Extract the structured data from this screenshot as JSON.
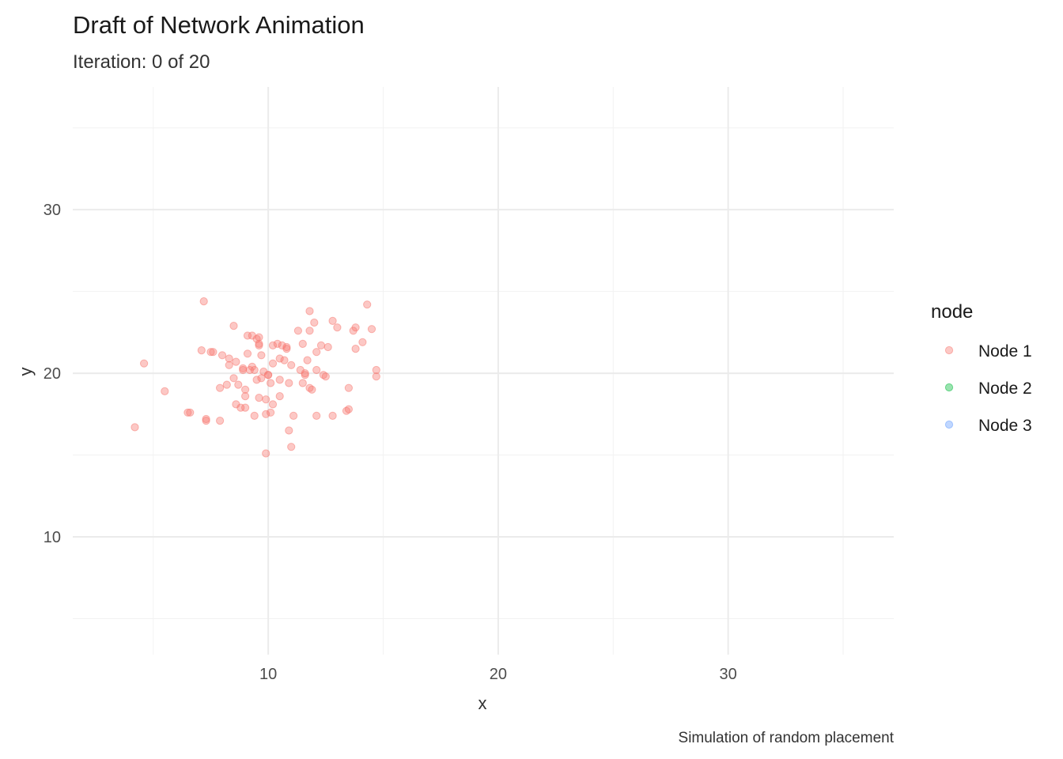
{
  "chart_data": {
    "type": "scatter",
    "title": "Draft of Network Animation",
    "subtitle": "Iteration: 0 of 20",
    "xlabel": "x",
    "ylabel": "y",
    "caption": "Simulation of random placement",
    "xlim": [
      1.5,
      37.2
    ],
    "ylim": [
      2.8,
      37.5
    ],
    "x_ticks": [
      10,
      20,
      30
    ],
    "y_ticks": [
      10,
      20,
      30
    ],
    "x_minor_ticks": [
      5,
      15,
      25,
      35
    ],
    "y_minor_ticks": [
      5,
      15,
      25,
      35
    ],
    "grid": true,
    "legend": {
      "title": "node",
      "position": "right",
      "entries": [
        {
          "label": "Node 1",
          "color": "#F8766D"
        },
        {
          "label": "Node 2",
          "color": "#00BA38"
        },
        {
          "label": "Node 3",
          "color": "#619CFF"
        }
      ]
    },
    "point_alpha": 0.4,
    "series": [
      {
        "name": "Node 1",
        "color": "#F8766D",
        "points": [
          [
            4.2,
            16.7
          ],
          [
            4.6,
            20.6
          ],
          [
            5.5,
            18.9
          ],
          [
            6.5,
            17.6
          ],
          [
            6.6,
            17.6
          ],
          [
            7.2,
            24.4
          ],
          [
            7.1,
            21.4
          ],
          [
            7.3,
            17.1
          ],
          [
            7.3,
            17.2
          ],
          [
            7.5,
            21.3
          ],
          [
            7.6,
            21.3
          ],
          [
            7.9,
            19.1
          ],
          [
            7.9,
            17.1
          ],
          [
            8.0,
            21.1
          ],
          [
            8.2,
            19.3
          ],
          [
            8.3,
            20.9
          ],
          [
            8.3,
            20.5
          ],
          [
            8.5,
            19.7
          ],
          [
            8.5,
            22.9
          ],
          [
            8.6,
            20.7
          ],
          [
            8.6,
            18.1
          ],
          [
            8.7,
            19.3
          ],
          [
            8.8,
            17.9
          ],
          [
            8.9,
            20.2
          ],
          [
            8.9,
            20.3
          ],
          [
            9.0,
            17.9
          ],
          [
            9.0,
            19.0
          ],
          [
            9.0,
            18.6
          ],
          [
            9.1,
            22.3
          ],
          [
            9.1,
            21.2
          ],
          [
            9.2,
            20.2
          ],
          [
            9.3,
            22.3
          ],
          [
            9.3,
            20.4
          ],
          [
            9.4,
            20.2
          ],
          [
            9.4,
            17.4
          ],
          [
            9.5,
            19.6
          ],
          [
            9.5,
            22.1
          ],
          [
            9.6,
            22.2
          ],
          [
            9.6,
            21.7
          ],
          [
            9.6,
            21.8
          ],
          [
            9.6,
            18.5
          ],
          [
            9.7,
            21.1
          ],
          [
            9.7,
            19.7
          ],
          [
            9.8,
            20.1
          ],
          [
            9.9,
            18.4
          ],
          [
            9.9,
            17.5
          ],
          [
            9.9,
            15.1
          ],
          [
            10.0,
            19.9
          ],
          [
            10.0,
            19.9
          ],
          [
            10.1,
            19.4
          ],
          [
            10.1,
            17.6
          ],
          [
            10.2,
            20.6
          ],
          [
            10.2,
            21.7
          ],
          [
            10.2,
            18.1
          ],
          [
            10.4,
            21.8
          ],
          [
            10.5,
            20.9
          ],
          [
            10.5,
            18.6
          ],
          [
            10.5,
            19.6
          ],
          [
            10.6,
            21.7
          ],
          [
            10.7,
            20.8
          ],
          [
            10.8,
            21.5
          ],
          [
            10.8,
            21.6
          ],
          [
            10.9,
            19.4
          ],
          [
            10.9,
            16.5
          ],
          [
            11.0,
            20.5
          ],
          [
            11.0,
            15.5
          ],
          [
            11.1,
            17.4
          ],
          [
            11.3,
            22.6
          ],
          [
            11.4,
            20.2
          ],
          [
            11.5,
            21.8
          ],
          [
            11.5,
            19.4
          ],
          [
            11.6,
            20.0
          ],
          [
            11.6,
            19.9
          ],
          [
            11.7,
            20.8
          ],
          [
            11.8,
            19.1
          ],
          [
            11.8,
            22.6
          ],
          [
            11.8,
            23.8
          ],
          [
            11.9,
            19.0
          ],
          [
            12.0,
            23.1
          ],
          [
            12.1,
            20.2
          ],
          [
            12.1,
            21.3
          ],
          [
            12.1,
            17.4
          ],
          [
            12.3,
            21.7
          ],
          [
            12.4,
            19.9
          ],
          [
            12.5,
            19.8
          ],
          [
            12.6,
            21.6
          ],
          [
            12.8,
            17.4
          ],
          [
            12.8,
            23.2
          ],
          [
            13.0,
            22.8
          ],
          [
            13.4,
            17.7
          ],
          [
            13.5,
            17.8
          ],
          [
            13.5,
            19.1
          ],
          [
            13.7,
            22.6
          ],
          [
            13.8,
            22.8
          ],
          [
            13.8,
            21.5
          ],
          [
            14.1,
            21.9
          ],
          [
            14.3,
            24.2
          ],
          [
            14.5,
            22.7
          ],
          [
            14.7,
            20.2
          ],
          [
            14.7,
            19.8
          ]
        ]
      },
      {
        "name": "Node 2",
        "color": "#00BA38",
        "points": []
      },
      {
        "name": "Node 3",
        "color": "#619CFF",
        "points": []
      }
    ]
  }
}
